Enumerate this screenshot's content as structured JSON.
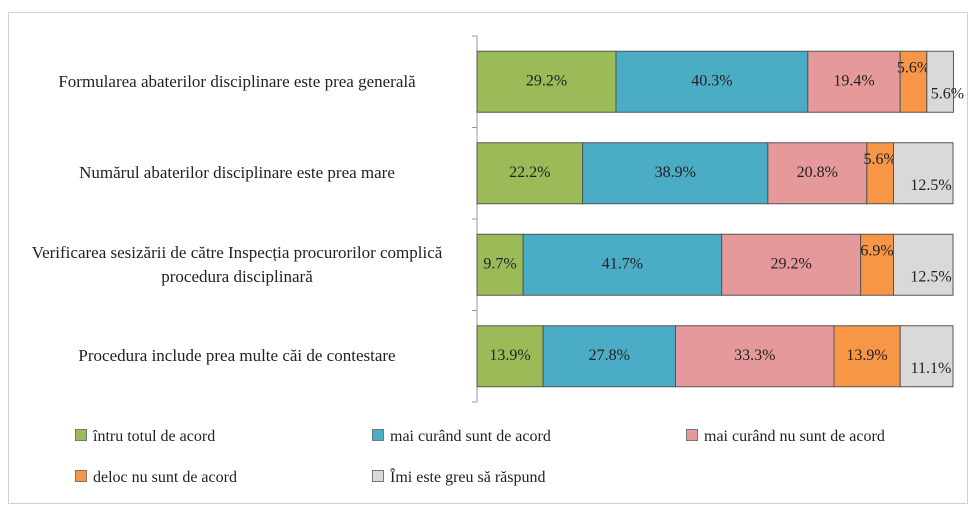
{
  "chart_data": {
    "type": "stacked-bar-horizontal",
    "categories": [
      "Formularea abaterilor disciplinare este prea generală",
      "Numărul abaterilor disciplinare este prea mare",
      "Verificarea sesizării de către Inspecția procurorilor complică procedura disciplinară",
      "Procedura include prea multe căi de contestare"
    ],
    "series": [
      {
        "name": "întru totul de acord",
        "color": "#9bbb59",
        "values": [
          29.2,
          22.2,
          9.7,
          13.9
        ],
        "value_labels": [
          "29.2%",
          "22.2%",
          "9.7%",
          "13.9%"
        ]
      },
      {
        "name": "mai curând sunt de acord",
        "color": "#4bacc6",
        "values": [
          40.3,
          38.9,
          41.7,
          27.8
        ],
        "value_labels": [
          "40.3%",
          "38.9%",
          "41.7%",
          "27.8%"
        ]
      },
      {
        "name": "mai curând nu sunt de acord",
        "color": "#e6999a",
        "values": [
          19.4,
          20.8,
          29.2,
          33.3
        ],
        "value_labels": [
          "19.4%",
          "20.8%",
          "29.2%",
          "33.3%"
        ]
      },
      {
        "name": "deloc nu sunt de acord",
        "color": "#f79646",
        "values": [
          5.6,
          5.6,
          6.9,
          13.9
        ],
        "value_labels": [
          "5.6%",
          "5.6%",
          "6.9%",
          "13.9%"
        ]
      },
      {
        "name": "Îmi este greu să răspund",
        "color": "#d9d9d9",
        "values": [
          5.6,
          12.5,
          12.5,
          11.1
        ],
        "value_labels": [
          "5.6%",
          "12.5%",
          "12.5%",
          "11.1%"
        ]
      }
    ],
    "xlim": [
      0,
      100
    ]
  }
}
